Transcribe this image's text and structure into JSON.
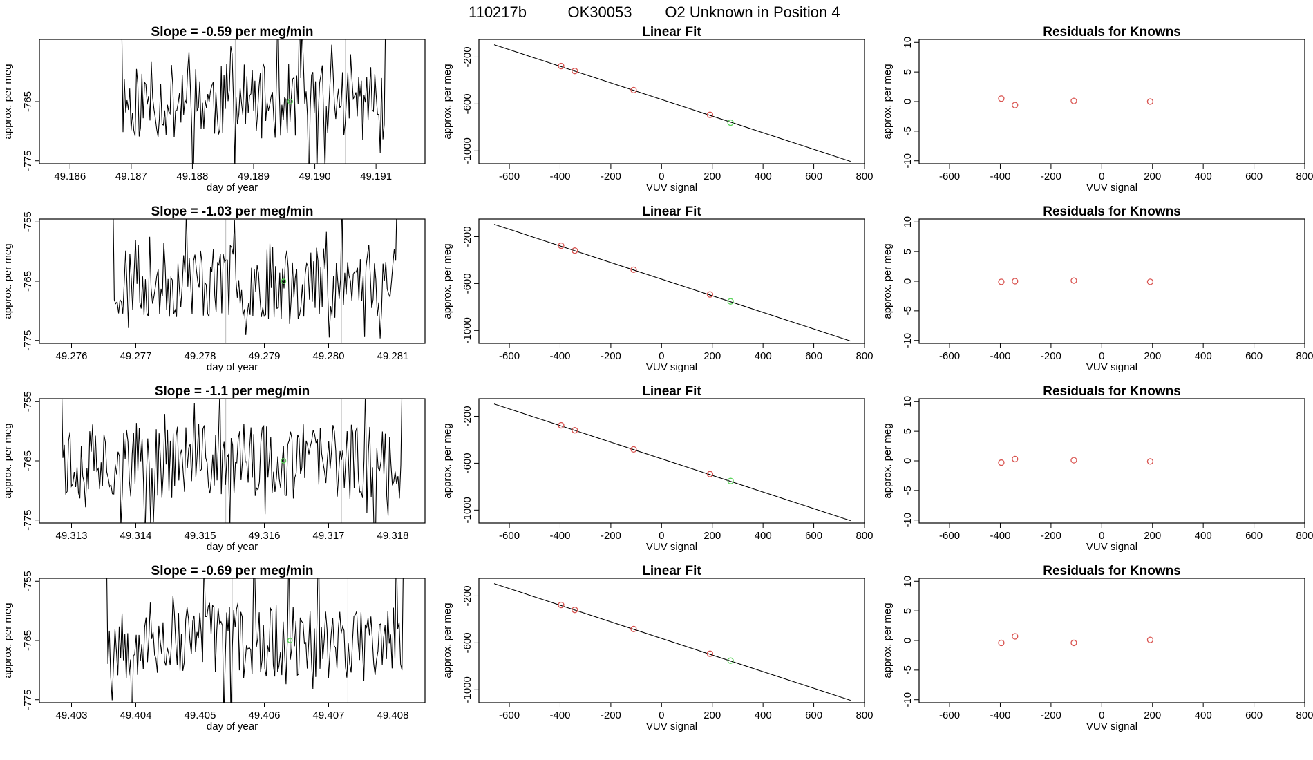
{
  "figure": {
    "title_run": "110217b",
    "title_ok": "OK30053",
    "title_desc": "O2 Unknown in Position  4"
  },
  "colors": {
    "known": "#d9534f",
    "unknown": "#5ad45a",
    "line": "#000000",
    "marker_line": "#bbbbbb"
  },
  "chart_data": [
    {
      "type": "line",
      "row": 1,
      "panel": "time-series",
      "title": "Slope =  -0.59  per meg/min",
      "xlabel": "day of year",
      "ylabel": "approx. per meg",
      "xlim": [
        49.1855,
        49.1918
      ],
      "ylim": [
        -775.5,
        -754.5
      ],
      "xticks": [
        "49.186",
        "49.187",
        "49.188",
        "49.189",
        "49.190",
        "49.191"
      ],
      "xtick_values": [
        49.186,
        49.187,
        49.188,
        49.189,
        49.19,
        49.191
      ],
      "yticks": [
        "-765",
        "-775"
      ],
      "ytick_values": [
        -765,
        -775
      ],
      "vlines": [
        49.1887,
        49.1905
      ],
      "series_start": 49.1868,
      "series_end": 49.1912,
      "series_dx": 2.2e-05,
      "series_seed": 11,
      "unknown_point": {
        "x": 49.1896,
        "y": -765
      }
    },
    {
      "type": "scatter",
      "row": 1,
      "panel": "linear-fit",
      "title": "Linear Fit",
      "xlabel": "VUV signal",
      "ylabel": "approx. per meg",
      "xlim": [
        -720,
        800
      ],
      "ylim": [
        -1110,
        -50
      ],
      "xticks": [
        "-600",
        "-400",
        "-200",
        "0",
        "200",
        "400",
        "600",
        "800"
      ],
      "xtick_values": [
        -600,
        -400,
        -200,
        0,
        200,
        400,
        600,
        800
      ],
      "yticks": [
        "-200",
        "-600",
        "-1000"
      ],
      "ytick_values": [
        -200,
        -600,
        -1000
      ],
      "line": {
        "x1": -660,
        "y1": -95,
        "x2": 745,
        "y2": -1090
      },
      "known_points": [
        {
          "x": -396,
          "y": -277
        },
        {
          "x": -342,
          "y": -319
        },
        {
          "x": -110,
          "y": -482
        },
        {
          "x": 191,
          "y": -693
        }
      ],
      "unknown_points": [
        {
          "x": 272,
          "y": -760
        }
      ]
    },
    {
      "type": "scatter",
      "row": 1,
      "panel": "residuals",
      "title": "Residuals for Knowns",
      "xlabel": "VUV signal",
      "ylabel": "approx. per meg",
      "xlim": [
        -720,
        800
      ],
      "ylim": [
        -10.5,
        10.5
      ],
      "xticks": [
        "-600",
        "-400",
        "-200",
        "0",
        "200",
        "400",
        "600",
        "800"
      ],
      "xtick_values": [
        -600,
        -400,
        -200,
        0,
        200,
        400,
        600,
        800
      ],
      "yticks": [
        "10",
        "5",
        "0",
        "-5",
        "-10"
      ],
      "ytick_values": [
        10,
        5,
        0,
        -5,
        -10
      ],
      "known_points": [
        {
          "x": -396,
          "y": 0.5
        },
        {
          "x": -342,
          "y": -0.6
        },
        {
          "x": -110,
          "y": 0.1
        },
        {
          "x": 191,
          "y": 0.0
        }
      ]
    },
    {
      "type": "line",
      "row": 2,
      "panel": "time-series",
      "title": "Slope =  -1.03  per meg/min",
      "xlabel": "day of year",
      "ylabel": "approx. per meg",
      "xlim": [
        49.2755,
        49.2815
      ],
      "ylim": [
        -775.5,
        -754.5
      ],
      "xticks": [
        "49.276",
        "49.277",
        "49.278",
        "49.279",
        "49.280",
        "49.281"
      ],
      "xtick_values": [
        49.276,
        49.277,
        49.278,
        49.279,
        49.28,
        49.281
      ],
      "yticks": [
        "-755",
        "-765",
        "-775"
      ],
      "ytick_values": [
        -755,
        -765,
        -775
      ],
      "vlines": [
        49.2784,
        49.2802
      ],
      "series_start": 49.2766,
      "series_end": 49.2811,
      "series_dx": 2.2e-05,
      "series_seed": 23,
      "unknown_point": {
        "x": 49.2793,
        "y": -765
      }
    },
    {
      "type": "scatter",
      "row": 2,
      "panel": "linear-fit",
      "title": "Linear Fit",
      "xlabel": "VUV signal",
      "ylabel": "approx. per meg",
      "xlim": [
        -720,
        800
      ],
      "ylim": [
        -1110,
        -50
      ],
      "xticks": [
        "-600",
        "-400",
        "-200",
        "0",
        "200",
        "400",
        "600",
        "800"
      ],
      "xtick_values": [
        -600,
        -400,
        -200,
        0,
        200,
        400,
        600,
        800
      ],
      "yticks": [
        "-200",
        "-600",
        "-1000"
      ],
      "ytick_values": [
        -200,
        -600,
        -1000
      ],
      "line": {
        "x1": -660,
        "y1": -95,
        "x2": 745,
        "y2": -1090
      },
      "known_points": [
        {
          "x": -396,
          "y": -277
        },
        {
          "x": -342,
          "y": -319
        },
        {
          "x": -110,
          "y": -482
        },
        {
          "x": 191,
          "y": -693
        }
      ],
      "unknown_points": [
        {
          "x": 272,
          "y": -752
        }
      ]
    },
    {
      "type": "scatter",
      "row": 2,
      "panel": "residuals",
      "title": "Residuals for Knowns",
      "xlabel": "VUV signal",
      "ylabel": "approx. per meg",
      "xlim": [
        -720,
        800
      ],
      "ylim": [
        -10.5,
        10.5
      ],
      "xticks": [
        "-600",
        "-400",
        "-200",
        "0",
        "200",
        "400",
        "600",
        "800"
      ],
      "xtick_values": [
        -600,
        -400,
        -200,
        0,
        200,
        400,
        600,
        800
      ],
      "yticks": [
        "10",
        "5",
        "0",
        "-5",
        "-10"
      ],
      "ytick_values": [
        10,
        5,
        0,
        -5,
        -10
      ],
      "known_points": [
        {
          "x": -396,
          "y": -0.1
        },
        {
          "x": -342,
          "y": 0.0
        },
        {
          "x": -110,
          "y": 0.1
        },
        {
          "x": 191,
          "y": -0.1
        }
      ]
    },
    {
      "type": "line",
      "row": 3,
      "panel": "time-series",
      "title": "Slope =  -1.1  per meg/min",
      "xlabel": "day of year",
      "ylabel": "approx. per meg",
      "xlim": [
        49.3125,
        49.3185
      ],
      "ylim": [
        -775.5,
        -754.5
      ],
      "xticks": [
        "49.313",
        "49.314",
        "49.315",
        "49.316",
        "49.317",
        "49.318"
      ],
      "xtick_values": [
        49.313,
        49.314,
        49.315,
        49.316,
        49.317,
        49.318
      ],
      "yticks": [
        "-755",
        "-765",
        "-775"
      ],
      "ytick_values": [
        -755,
        -765,
        -775
      ],
      "vlines": [
        49.3154,
        49.3172
      ],
      "series_start": 49.3128,
      "series_end": 49.3182,
      "series_dx": 2.2e-05,
      "series_seed": 37,
      "unknown_point": {
        "x": 49.3163,
        "y": -765
      }
    },
    {
      "type": "scatter",
      "row": 3,
      "panel": "linear-fit",
      "title": "Linear Fit",
      "xlabel": "VUV signal",
      "ylabel": "approx. per meg",
      "xlim": [
        -720,
        800
      ],
      "ylim": [
        -1110,
        -50
      ],
      "xticks": [
        "-600",
        "-400",
        "-200",
        "0",
        "200",
        "400",
        "600",
        "800"
      ],
      "xtick_values": [
        -600,
        -400,
        -200,
        0,
        200,
        400,
        600,
        800
      ],
      "yticks": [
        "-200",
        "-600",
        "-1000"
      ],
      "ytick_values": [
        -200,
        -600,
        -1000
      ],
      "line": {
        "x1": -660,
        "y1": -95,
        "x2": 745,
        "y2": -1090
      },
      "known_points": [
        {
          "x": -396,
          "y": -277
        },
        {
          "x": -342,
          "y": -319
        },
        {
          "x": -110,
          "y": -482
        },
        {
          "x": 191,
          "y": -693
        }
      ],
      "unknown_points": [
        {
          "x": 272,
          "y": -752
        }
      ]
    },
    {
      "type": "scatter",
      "row": 3,
      "panel": "residuals",
      "title": "Residuals for Knowns",
      "xlabel": "VUV signal",
      "ylabel": "approx. per meg",
      "xlim": [
        -720,
        800
      ],
      "ylim": [
        -10.5,
        10.5
      ],
      "xticks": [
        "-600",
        "-400",
        "-200",
        "0",
        "200",
        "400",
        "600",
        "800"
      ],
      "xtick_values": [
        -600,
        -400,
        -200,
        0,
        200,
        400,
        600,
        800
      ],
      "yticks": [
        "10",
        "5",
        "0",
        "-5",
        "-10"
      ],
      "ytick_values": [
        10,
        5,
        0,
        -5,
        -10
      ],
      "known_points": [
        {
          "x": -396,
          "y": -0.3
        },
        {
          "x": -342,
          "y": 0.3
        },
        {
          "x": -110,
          "y": 0.1
        },
        {
          "x": 191,
          "y": -0.1
        }
      ]
    },
    {
      "type": "line",
      "row": 4,
      "panel": "time-series",
      "title": "Slope =  -0.69  per meg/min",
      "xlabel": "day of year",
      "ylabel": "approx. per meg",
      "xlim": [
        49.4025,
        49.4085
      ],
      "ylim": [
        -775.5,
        -754.5
      ],
      "xticks": [
        "49.403",
        "49.404",
        "49.405",
        "49.406",
        "49.407",
        "49.408"
      ],
      "xtick_values": [
        49.403,
        49.404,
        49.405,
        49.406,
        49.407,
        49.408
      ],
      "yticks": [
        "-755",
        "-765",
        "-775"
      ],
      "ytick_values": [
        -755,
        -765,
        -775
      ],
      "vlines": [
        49.4055,
        49.4073
      ],
      "series_start": 49.4035,
      "series_end": 49.4082,
      "series_dx": 2.2e-05,
      "series_seed": 53,
      "unknown_point": {
        "x": 49.4064,
        "y": -765
      }
    },
    {
      "type": "scatter",
      "row": 4,
      "panel": "linear-fit",
      "title": "Linear Fit",
      "xlabel": "VUV signal",
      "ylabel": "approx. per meg",
      "xlim": [
        -720,
        800
      ],
      "ylim": [
        -1110,
        -50
      ],
      "xticks": [
        "-600",
        "-400",
        "-200",
        "0",
        "200",
        "400",
        "600",
        "800"
      ],
      "xtick_values": [
        -600,
        -400,
        -200,
        0,
        200,
        400,
        600,
        800
      ],
      "yticks": [
        "-200",
        "-600",
        "-1000"
      ],
      "ytick_values": [
        -200,
        -600,
        -1000
      ],
      "line": {
        "x1": -660,
        "y1": -95,
        "x2": 745,
        "y2": -1090
      },
      "known_points": [
        {
          "x": -396,
          "y": -277
        },
        {
          "x": -342,
          "y": -319
        },
        {
          "x": -110,
          "y": -482
        },
        {
          "x": 191,
          "y": -693
        }
      ],
      "unknown_points": [
        {
          "x": 272,
          "y": -752
        }
      ]
    },
    {
      "type": "scatter",
      "row": 4,
      "panel": "residuals",
      "title": "Residuals for Knowns",
      "xlabel": "VUV signal",
      "ylabel": "approx. per meg",
      "xlim": [
        -720,
        800
      ],
      "ylim": [
        -10.5,
        10.5
      ],
      "xticks": [
        "-600",
        "-400",
        "-200",
        "0",
        "200",
        "400",
        "600",
        "800"
      ],
      "xtick_values": [
        -600,
        -400,
        -200,
        0,
        200,
        400,
        600,
        800
      ],
      "yticks": [
        "10",
        "5",
        "0",
        "-5",
        "-10"
      ],
      "ytick_values": [
        10,
        5,
        0,
        -5,
        -10
      ],
      "known_points": [
        {
          "x": -396,
          "y": -0.4
        },
        {
          "x": -342,
          "y": 0.7
        },
        {
          "x": -110,
          "y": -0.4
        },
        {
          "x": 191,
          "y": 0.1
        }
      ]
    }
  ]
}
